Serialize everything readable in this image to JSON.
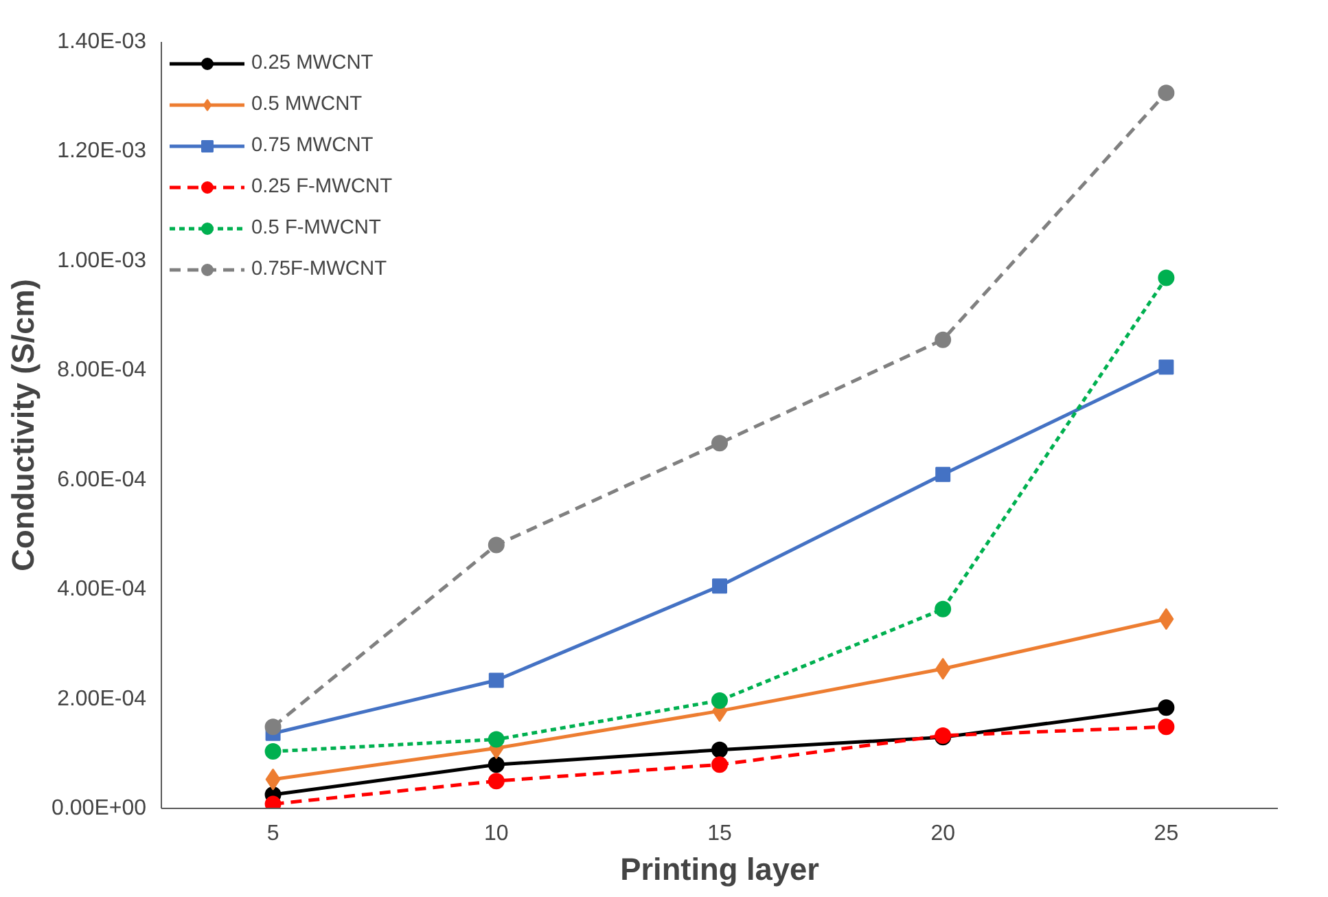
{
  "chart_data": {
    "type": "line",
    "xlabel": "Printing layer",
    "ylabel": "Conductivity (S/cm)",
    "categories": [
      "5",
      "10",
      "15",
      "20",
      "25"
    ],
    "ylim": [
      0,
      0.0014
    ],
    "yticks": [
      {
        "value": 0,
        "label": "0.00E+00"
      },
      {
        "value": 0.0002,
        "label": "2.00E-04"
      },
      {
        "value": 0.0004,
        "label": "4.00E-04"
      },
      {
        "value": 0.0006,
        "label": "6.00E-04"
      },
      {
        "value": 0.0008,
        "label": "8.00E-04"
      },
      {
        "value": 0.001,
        "label": "1.00E-03"
      },
      {
        "value": 0.0012,
        "label": "1.20E-03"
      },
      {
        "value": 0.0014,
        "label": "1.40E-03"
      }
    ],
    "grid": false,
    "legend": "top left",
    "series": [
      {
        "name": "0.25 MWCNT",
        "color": "#000000",
        "marker": "circle",
        "line_style": "solid",
        "values": [
          2.5e-05,
          8e-05,
          0.000107,
          0.00013,
          0.000184
        ]
      },
      {
        "name": "0.5 MWCNT",
        "color": "#ed7d31",
        "marker": "diamond",
        "line_style": "solid",
        "values": [
          5.3e-05,
          0.00011,
          0.000178,
          0.000255,
          0.000346
        ]
      },
      {
        "name": "0.75 MWCNT",
        "color": "#4472c4",
        "marker": "square",
        "line_style": "solid",
        "values": [
          0.000137,
          0.000234,
          0.000406,
          0.00061,
          0.000806
        ]
      },
      {
        "name": "0.25 F-MWCNT",
        "color": "#ff0000",
        "marker": "circle",
        "line_style": "dashed",
        "values": [
          8e-06,
          5e-05,
          8e-05,
          0.000133,
          0.000149
        ]
      },
      {
        "name": "0.5 F-MWCNT",
        "color": "#00b050",
        "marker": "circle",
        "line_style": "dotted",
        "values": [
          0.000104,
          0.000126,
          0.000197,
          0.000364,
          0.000969
        ]
      },
      {
        "name": "0.75F-MWCNT",
        "color": "#808080",
        "marker": "circle",
        "line_style": "dashed",
        "values": [
          0.000149,
          0.000481,
          0.000667,
          0.000856,
          0.001307
        ]
      }
    ]
  }
}
